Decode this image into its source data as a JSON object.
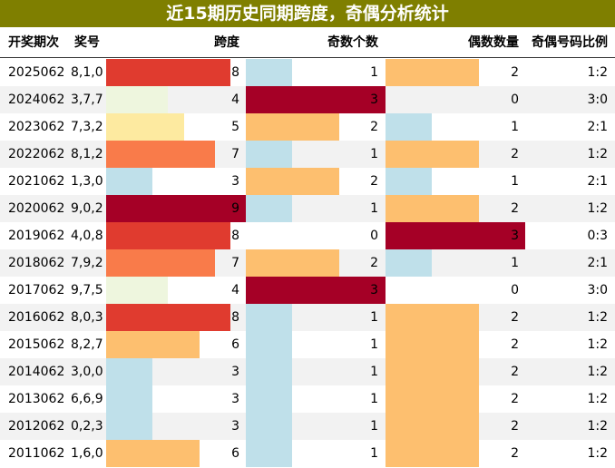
{
  "title": "近15期历史同期跨度，奇偶分析统计",
  "headers": {
    "period": "开奖期次",
    "numbers": "奖号",
    "span": "跨度",
    "odd": "奇数个数",
    "even": "偶数数量",
    "ratio": "奇偶号码比例"
  },
  "colors": {
    "title_bg": "#7f7f00",
    "span_scale": [
      "#bfe0ea",
      "#bfe0ea",
      "#bfe0ea",
      "#bfe0ea",
      "#eef6de",
      "#fdeaa0",
      "#fdbf6f",
      "#f97b4a",
      "#e03b2f",
      "#a50026"
    ],
    "count_scale": [
      "#ffffff",
      "#bfe0ea",
      "#fdbf6f",
      "#a50026"
    ]
  },
  "chart_data": {
    "type": "table",
    "columns": [
      "开奖期次",
      "奖号",
      "跨度",
      "奇数个数",
      "偶数数量",
      "奇偶号码比例"
    ],
    "span_max": 9,
    "count_max": 3,
    "rows": [
      {
        "period": "2025062",
        "numbers": "8,1,0",
        "span": 8,
        "odd": 1,
        "even": 2,
        "ratio": "1:2"
      },
      {
        "period": "2024062",
        "numbers": "3,7,7",
        "span": 4,
        "odd": 3,
        "even": 0,
        "ratio": "3:0"
      },
      {
        "period": "2023062",
        "numbers": "7,3,2",
        "span": 5,
        "odd": 2,
        "even": 1,
        "ratio": "2:1"
      },
      {
        "period": "2022062",
        "numbers": "8,1,2",
        "span": 7,
        "odd": 1,
        "even": 2,
        "ratio": "1:2"
      },
      {
        "period": "2021062",
        "numbers": "1,3,0",
        "span": 3,
        "odd": 2,
        "even": 1,
        "ratio": "2:1"
      },
      {
        "period": "2020062",
        "numbers": "9,0,2",
        "span": 9,
        "odd": 1,
        "even": 2,
        "ratio": "1:2"
      },
      {
        "period": "2019062",
        "numbers": "4,0,8",
        "span": 8,
        "odd": 0,
        "even": 3,
        "ratio": "0:3"
      },
      {
        "period": "2018062",
        "numbers": "7,9,2",
        "span": 7,
        "odd": 2,
        "even": 1,
        "ratio": "2:1"
      },
      {
        "period": "2017062",
        "numbers": "9,7,5",
        "span": 4,
        "odd": 3,
        "even": 0,
        "ratio": "3:0"
      },
      {
        "period": "2016062",
        "numbers": "8,0,3",
        "span": 8,
        "odd": 1,
        "even": 2,
        "ratio": "1:2"
      },
      {
        "period": "2015062",
        "numbers": "8,2,7",
        "span": 6,
        "odd": 1,
        "even": 2,
        "ratio": "1:2"
      },
      {
        "period": "2014062",
        "numbers": "3,0,0",
        "span": 3,
        "odd": 1,
        "even": 2,
        "ratio": "1:2"
      },
      {
        "period": "2013062",
        "numbers": "6,6,9",
        "span": 3,
        "odd": 1,
        "even": 2,
        "ratio": "1:2"
      },
      {
        "period": "2012062",
        "numbers": "0,2,3",
        "span": 3,
        "odd": 1,
        "even": 2,
        "ratio": "1:2"
      },
      {
        "period": "2011062",
        "numbers": "1,6,0",
        "span": 6,
        "odd": 1,
        "even": 2,
        "ratio": "1:2"
      }
    ]
  }
}
